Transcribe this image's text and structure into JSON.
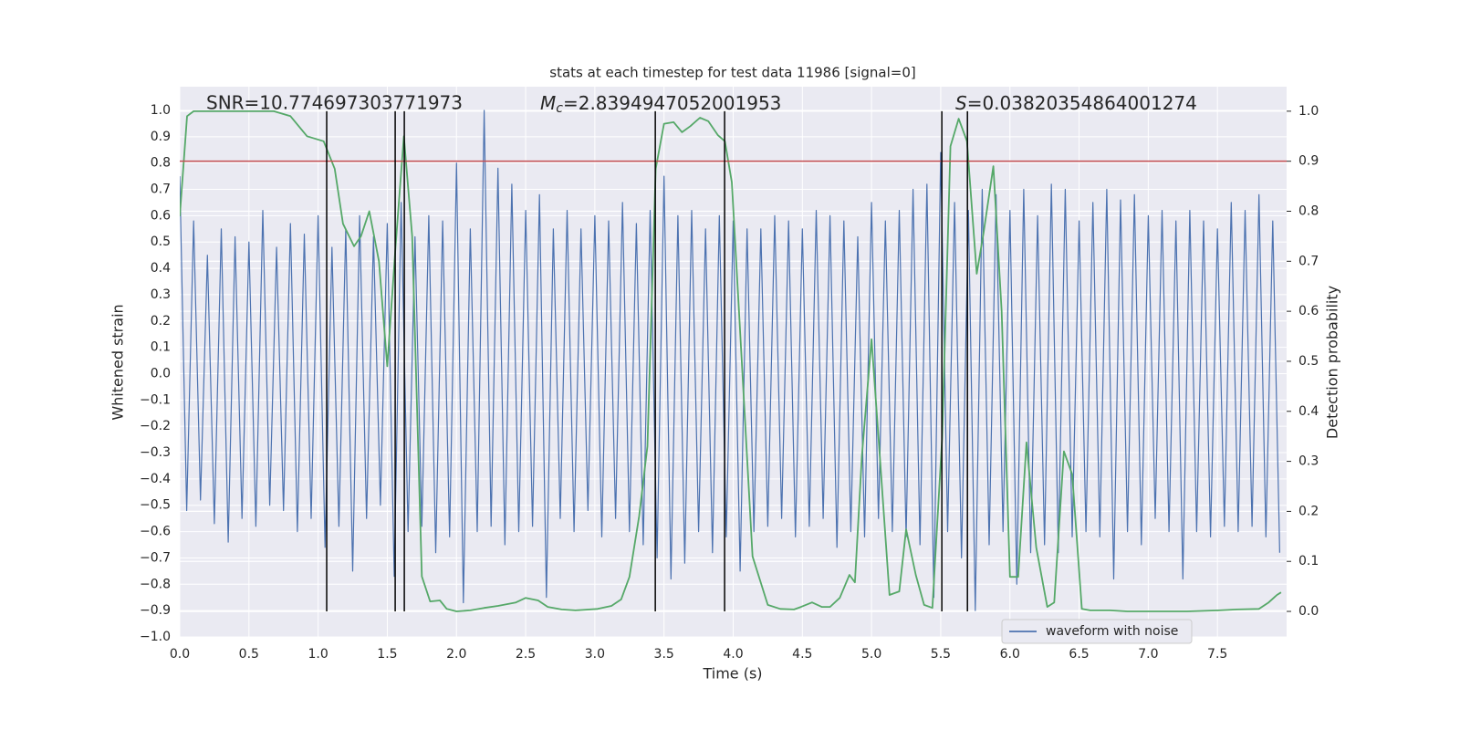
{
  "chart_data": {
    "type": "line",
    "title": "stats at each timestep for test data 11986 [signal=0]",
    "xlabel": "Time (s)",
    "ylabel": "Whitened strain",
    "y2label": "Detection probability",
    "annotations": [
      {
        "text": "SNR=10.774697303771973"
      },
      {
        "symbol": "M",
        "subscript": "c",
        "text": "=2.8394947052001953"
      },
      {
        "symbol": "S",
        "text": "=0.03820354864001274"
      }
    ],
    "xlim": [
      0,
      8
    ],
    "ylim": [
      -1.0,
      1.09
    ],
    "y2lim": [
      -0.051,
      1.049
    ],
    "xticks": [
      {
        "value": 0,
        "label": "0.0"
      },
      {
        "value": 0.5,
        "label": "0.5"
      },
      {
        "value": 1,
        "label": "1.0"
      },
      {
        "value": 1.5,
        "label": "1.5"
      },
      {
        "value": 2,
        "label": "2.0"
      },
      {
        "value": 2.5,
        "label": "2.5"
      },
      {
        "value": 3,
        "label": "3.0"
      },
      {
        "value": 3.5,
        "label": "3.5"
      },
      {
        "value": 4,
        "label": "4.0"
      },
      {
        "value": 4.5,
        "label": "4.5"
      },
      {
        "value": 5,
        "label": "5.0"
      },
      {
        "value": 5.5,
        "label": "5.5"
      },
      {
        "value": 6,
        "label": "6.0"
      },
      {
        "value": 6.5,
        "label": "6.5"
      },
      {
        "value": 7,
        "label": "7.0"
      },
      {
        "value": 7.5,
        "label": "7.5"
      }
    ],
    "yticks": [
      {
        "value": -1,
        "label": "−1.0"
      },
      {
        "value": -0.9,
        "label": "−0.9"
      },
      {
        "value": -0.8,
        "label": "−0.8"
      },
      {
        "value": -0.7,
        "label": "−0.7"
      },
      {
        "value": -0.6,
        "label": "−0.6"
      },
      {
        "value": -0.5,
        "label": "−0.5"
      },
      {
        "value": -0.4,
        "label": "−0.4"
      },
      {
        "value": -0.3,
        "label": "−0.3"
      },
      {
        "value": -0.2,
        "label": "−0.2"
      },
      {
        "value": -0.1,
        "label": "−0.1"
      },
      {
        "value": 0,
        "label": "0.0"
      },
      {
        "value": 0.1,
        "label": "0.1"
      },
      {
        "value": 0.2,
        "label": "0.2"
      },
      {
        "value": 0.3,
        "label": "0.3"
      },
      {
        "value": 0.4,
        "label": "0.4"
      },
      {
        "value": 0.5,
        "label": "0.5"
      },
      {
        "value": 0.6,
        "label": "0.6"
      },
      {
        "value": 0.7,
        "label": "0.7"
      },
      {
        "value": 0.8,
        "label": "0.8"
      },
      {
        "value": 0.9,
        "label": "0.9"
      },
      {
        "value": 1,
        "label": "1.0"
      }
    ],
    "y2ticks": [
      {
        "value": 0,
        "label": "0.0"
      },
      {
        "value": 0.1,
        "label": "0.1"
      },
      {
        "value": 0.2,
        "label": "0.2"
      },
      {
        "value": 0.3,
        "label": "0.3"
      },
      {
        "value": 0.4,
        "label": "0.4"
      },
      {
        "value": 0.5,
        "label": "0.5"
      },
      {
        "value": 0.6,
        "label": "0.6"
      },
      {
        "value": 0.7,
        "label": "0.7"
      },
      {
        "value": 0.8,
        "label": "0.8"
      },
      {
        "value": 0.9,
        "label": "0.9"
      },
      {
        "value": 1,
        "label": "1.0"
      }
    ],
    "grid": true,
    "legend_position": "lower right",
    "threshold": {
      "value": 0.9,
      "axis": "y2",
      "color": "#c44e52"
    },
    "vlines": {
      "x": [
        1.062,
        1.557,
        1.623,
        3.437,
        3.938,
        5.508,
        5.693
      ],
      "span": [
        0,
        1
      ],
      "axis": "y2",
      "color": "#000000"
    },
    "series": [
      {
        "name": "waveform with noise",
        "color": "#4c72b0",
        "x": [
          0,
          0.05,
          0.1,
          0.15,
          0.2,
          0.25,
          0.3,
          0.35,
          0.4,
          0.45,
          0.5,
          0.55,
          0.6,
          0.65,
          0.7,
          0.75,
          0.8,
          0.85,
          0.9,
          0.95,
          1,
          1.05,
          1.1,
          1.15,
          1.2,
          1.25,
          1.3,
          1.35,
          1.4,
          1.45,
          1.5,
          1.55,
          1.6,
          1.65,
          1.7,
          1.75,
          1.8,
          1.85,
          1.9,
          1.95,
          2,
          2.05,
          2.1,
          2.15,
          2.2,
          2.25,
          2.3,
          2.35,
          2.4,
          2.45,
          2.5,
          2.55,
          2.6,
          2.65,
          2.7,
          2.75,
          2.8,
          2.85,
          2.9,
          2.95,
          3,
          3.05,
          3.1,
          3.15,
          3.2,
          3.25,
          3.3,
          3.35,
          3.4,
          3.45,
          3.5,
          3.55,
          3.6,
          3.65,
          3.7,
          3.75,
          3.8,
          3.85,
          3.9,
          3.95,
          4,
          4.05,
          4.1,
          4.15,
          4.2,
          4.25,
          4.3,
          4.35,
          4.4,
          4.45,
          4.5,
          4.55,
          4.6,
          4.65,
          4.7,
          4.75,
          4.8,
          4.85,
          4.9,
          4.95,
          5,
          5.05,
          5.1,
          5.15,
          5.2,
          5.25,
          5.3,
          5.35,
          5.4,
          5.45,
          5.5,
          5.55,
          5.6,
          5.65,
          5.7,
          5.75,
          5.8,
          5.85,
          5.9,
          5.95,
          6,
          6.05,
          6.1,
          6.15,
          6.2,
          6.25,
          6.3,
          6.35,
          6.4,
          6.45,
          6.5,
          6.55,
          6.6,
          6.65,
          6.7,
          6.75,
          6.8,
          6.85,
          6.9,
          6.95,
          7,
          7.05,
          7.1,
          7.15,
          7.2,
          7.25,
          7.3,
          7.35,
          7.4,
          7.45,
          7.5,
          7.55,
          7.6,
          7.65,
          7.7,
          7.75,
          7.8,
          7.85,
          7.9,
          7.95
        ],
        "values": [
          0.75,
          -0.52,
          0.58,
          -0.48,
          0.45,
          -0.57,
          0.55,
          -0.64,
          0.52,
          -0.55,
          0.5,
          -0.58,
          0.62,
          -0.5,
          0.48,
          -0.52,
          0.57,
          -0.6,
          0.53,
          -0.55,
          0.6,
          -0.66,
          0.48,
          -0.58,
          0.55,
          -0.75,
          0.6,
          -0.55,
          0.52,
          -0.5,
          0.57,
          -0.77,
          0.65,
          -0.6,
          0.52,
          -0.58,
          0.6,
          -0.68,
          0.58,
          -0.62,
          0.8,
          -0.87,
          0.55,
          -0.6,
          1.0,
          -0.58,
          0.78,
          -0.65,
          0.72,
          -0.6,
          0.62,
          -0.58,
          0.68,
          -0.85,
          0.55,
          -0.55,
          0.62,
          -0.6,
          0.55,
          -0.52,
          0.6,
          -0.62,
          0.58,
          -0.55,
          0.65,
          -0.6,
          0.57,
          -0.65,
          0.62,
          -0.7,
          0.75,
          -0.78,
          0.6,
          -0.72,
          0.62,
          -0.6,
          0.55,
          -0.68,
          0.6,
          -0.62,
          0.58,
          -0.75,
          0.55,
          -0.6,
          0.55,
          -0.58,
          0.6,
          -0.55,
          0.58,
          -0.62,
          0.55,
          -0.58,
          0.62,
          -0.55,
          0.6,
          -0.66,
          0.58,
          -0.6,
          0.52,
          -0.62,
          0.65,
          -0.55,
          0.58,
          -0.6,
          0.62,
          -0.62,
          0.7,
          -0.65,
          0.72,
          -0.85,
          0.84,
          -0.6,
          0.65,
          -0.7,
          0.62,
          -0.9,
          0.7,
          -0.65,
          0.68,
          -0.6,
          0.62,
          -0.8,
          0.7,
          -0.68,
          0.6,
          -0.65,
          0.72,
          -0.68,
          0.7,
          -0.62,
          0.58,
          -0.6,
          0.65,
          -0.62,
          0.7,
          -0.78,
          0.66,
          -0.6,
          0.68,
          -0.65,
          0.6,
          -0.55,
          0.62,
          -0.6,
          0.58,
          -0.78,
          0.62,
          -0.6,
          0.58,
          -0.62,
          0.55,
          -0.58,
          0.65,
          -0.6,
          0.62,
          -0.58,
          0.68,
          -0.62,
          0.58,
          -0.68
        ]
      },
      {
        "axis": "y2",
        "color": "#55a868",
        "x": [
          0,
          0.053,
          0.1,
          0.68,
          0.8,
          0.92,
          1.04,
          1.12,
          1.18,
          1.26,
          1.31,
          1.37,
          1.44,
          1.5,
          1.56,
          1.62,
          1.68,
          1.75,
          1.81,
          1.88,
          1.93,
          2.0,
          2.1,
          2.2,
          2.3,
          2.43,
          2.5,
          2.59,
          2.66,
          2.76,
          2.86,
          3.02,
          3.12,
          3.19,
          3.25,
          3.32,
          3.38,
          3.44,
          3.5,
          3.57,
          3.63,
          3.69,
          3.76,
          3.82,
          3.89,
          3.94,
          3.99,
          4.06,
          4.14,
          4.25,
          4.34,
          4.44,
          4.49,
          4.57,
          4.64,
          4.7,
          4.77,
          4.84,
          4.88,
          4.93,
          5.0,
          5.06,
          5.13,
          5.2,
          5.25,
          5.32,
          5.38,
          5.44,
          5.51,
          5.57,
          5.63,
          5.69,
          5.76,
          5.81,
          5.88,
          5.94,
          6.0,
          6.06,
          6.12,
          6.19,
          6.27,
          6.32,
          6.39,
          6.45,
          6.52,
          6.58,
          6.72,
          6.85,
          7.28,
          7.51,
          7.64,
          7.8,
          7.87,
          7.93,
          7.96
        ],
        "values": [
          0.79,
          0.99,
          1.0,
          1.0,
          0.99,
          0.95,
          0.94,
          0.885,
          0.775,
          0.73,
          0.75,
          0.8,
          0.7,
          0.49,
          0.73,
          0.95,
          0.75,
          0.07,
          0.02,
          0.022,
          0.005,
          0,
          0.002,
          0.007,
          0.011,
          0.018,
          0.027,
          0.022,
          0.009,
          0.004,
          0.002,
          0.005,
          0.011,
          0.024,
          0.069,
          0.19,
          0.33,
          0.885,
          0.975,
          0.978,
          0.958,
          0.97,
          0.987,
          0.98,
          0.952,
          0.94,
          0.858,
          0.51,
          0.11,
          0.013,
          0.005,
          0.004,
          0.009,
          0.018,
          0.009,
          0.009,
          0.027,
          0.073,
          0.058,
          0.31,
          0.544,
          0.31,
          0.033,
          0.04,
          0.164,
          0.073,
          0.013,
          0.007,
          0.347,
          0.93,
          0.985,
          0.94,
          0.675,
          0.757,
          0.89,
          0.6,
          0.069,
          0.069,
          0.338,
          0.128,
          0.009,
          0.018,
          0.32,
          0.274,
          0.005,
          0.002,
          0.002,
          0,
          0,
          0.002,
          0.004,
          0.005,
          0.018,
          0.033,
          0.038
        ]
      }
    ]
  }
}
